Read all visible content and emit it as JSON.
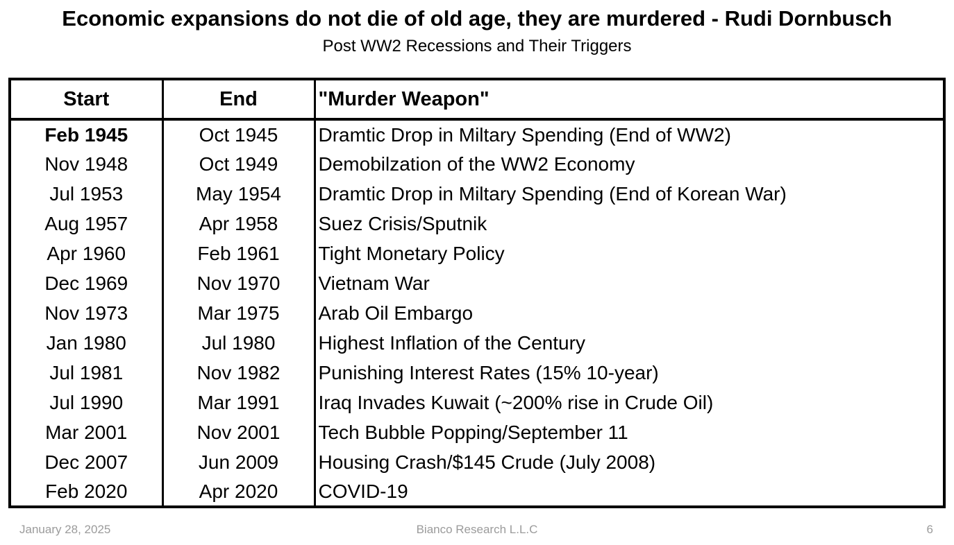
{
  "title": "Economic expansions do not die of old age, they are murdered - Rudi Dornbusch",
  "subtitle": "Post WW2 Recessions and Their Triggers",
  "table": {
    "headers": [
      "Start",
      "End",
      "\"Murder Weapon\""
    ],
    "rows": [
      {
        "start": "Feb 1945",
        "end": "Oct 1945",
        "weapon": "Dramtic Drop in Miltary Spending (End of WW2)",
        "bold_start": true
      },
      {
        "start": "Nov 1948",
        "end": "Oct 1949",
        "weapon": "Demobilzation of the WW2 Economy",
        "bold_start": false
      },
      {
        "start": "Jul 1953",
        "end": "May 1954",
        "weapon": "Dramtic Drop in Miltary Spending (End of Korean War)",
        "bold_start": false
      },
      {
        "start": "Aug 1957",
        "end": "Apr 1958",
        "weapon": "Suez Crisis/Sputnik",
        "bold_start": false
      },
      {
        "start": "Apr 1960",
        "end": "Feb 1961",
        "weapon": "Tight Monetary Policy",
        "bold_start": false
      },
      {
        "start": "Dec 1969",
        "end": "Nov 1970",
        "weapon": "Vietnam War",
        "bold_start": false
      },
      {
        "start": "Nov 1973",
        "end": "Mar 1975",
        "weapon": "Arab Oil Embargo",
        "bold_start": false
      },
      {
        "start": "Jan 1980",
        "end": "Jul 1980",
        "weapon": "Highest Inflation of the Century",
        "bold_start": false
      },
      {
        "start": "Jul 1981",
        "end": "Nov 1982",
        "weapon": "Punishing Interest Rates (15% 10-year)",
        "bold_start": false
      },
      {
        "start": "Jul 1990",
        "end": "Mar 1991",
        "weapon": "Iraq Invades Kuwait (~200% rise in Crude Oil)",
        "bold_start": false
      },
      {
        "start": "Mar 2001",
        "end": "Nov 2001",
        "weapon": "Tech Bubble Popping/September 11",
        "bold_start": false
      },
      {
        "start": "Dec 2007",
        "end": "Jun 2009",
        "weapon": "Housing Crash/$145 Crude (July 2008)",
        "bold_start": false
      },
      {
        "start": "Feb 2020",
        "end": "Apr 2020",
        "weapon": "COVID-19",
        "bold_start": false
      }
    ]
  },
  "footer": {
    "date": "January 28, 2025",
    "source": "Bianco Research L.L.C",
    "page": "6"
  },
  "colors": {
    "background": "#ffffff",
    "text": "#000000",
    "border": "#000000",
    "footer_text": "#9b9b9b"
  }
}
